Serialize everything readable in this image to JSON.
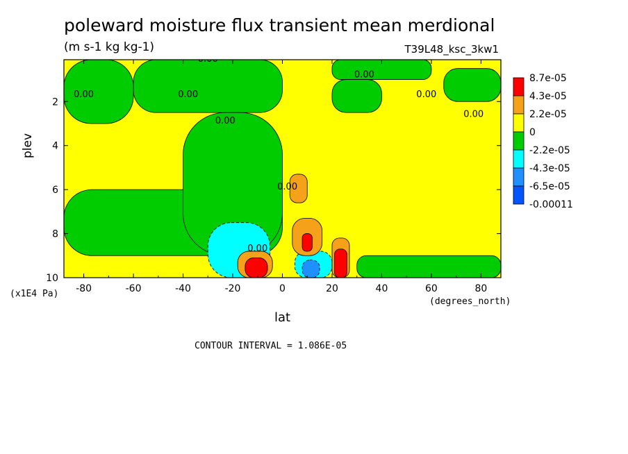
{
  "chart_data": {
    "type": "heatmap",
    "title": "poleward moisture flux transient mean merdional",
    "units": "(m s-1 kg kg-1)",
    "run_label": "T39L48_ksc_3kw1",
    "xlabel": "lat",
    "x_units": "(degrees_north)",
    "ylabel": "plev",
    "y_scale_label": "(x1E4 Pa)",
    "contour_interval": "CONTOUR INTERVAL = 1.086E-05",
    "xlim": [
      -88,
      88
    ],
    "ylim": [
      10,
      0.1
    ],
    "x_ticks": [
      -80,
      -60,
      -40,
      -20,
      0,
      20,
      40,
      60,
      80
    ],
    "x_tick_labels": [
      "-80",
      "-60",
      "-40",
      "-20",
      "0",
      "20",
      "40",
      "60",
      "80"
    ],
    "y_ticks": [
      2,
      4,
      6,
      8,
      10
    ],
    "y_tick_labels": [
      "2",
      "4",
      "6",
      "8",
      "10"
    ],
    "contour_labels": [
      "0.00",
      "0.00",
      "0.00",
      "0.00",
      "0.00",
      "0.00",
      "0.00",
      "0.00",
      "0.00",
      "0.00"
    ],
    "legend": {
      "labels": [
        "8.7e-05",
        "4.3e-05",
        "2.2e-05",
        "0",
        "-2.2e-05",
        "-4.3e-05",
        "-6.5e-05",
        "-0.00011"
      ],
      "colors": [
        "#ff0000",
        "#f5a21a",
        "#ffff00",
        "#00cc00",
        "#00ffff",
        "#1e90ff",
        "#0055ff"
      ]
    },
    "regions": [
      {
        "band": "0 to 2.2e-05",
        "color": "#ffff00",
        "lat": [
          -88,
          88
        ],
        "plev": [
          0.1,
          10
        ]
      },
      {
        "band": "-2.2e-05 to 0",
        "color": "#00cc00",
        "lat": [
          -88,
          -60
        ],
        "plev": [
          0.1,
          3
        ]
      },
      {
        "band": "-2.2e-05 to 0",
        "color": "#00cc00",
        "lat": [
          -60,
          0
        ],
        "plev": [
          0.1,
          2.5
        ]
      },
      {
        "band": "-2.2e-05 to 0",
        "color": "#00cc00",
        "lat": [
          -88,
          0
        ],
        "plev": [
          6,
          9
        ]
      },
      {
        "band": "-2.2e-05 to 0",
        "color": "#00cc00",
        "lat": [
          -40,
          0
        ],
        "plev": [
          2.5,
          9
        ]
      },
      {
        "band": "-2.2e-05 to 0",
        "color": "#00cc00",
        "lat": [
          20,
          60
        ],
        "plev": [
          0.1,
          1
        ]
      },
      {
        "band": "-2.2e-05 to 0",
        "color": "#00cc00",
        "lat": [
          20,
          40
        ],
        "plev": [
          1,
          2.5
        ]
      },
      {
        "band": "-2.2e-05 to 0",
        "color": "#00cc00",
        "lat": [
          65,
          88
        ],
        "plev": [
          0.5,
          2
        ]
      },
      {
        "band": "-2.2e-05 to 0",
        "color": "#00cc00",
        "lat": [
          30,
          88
        ],
        "plev": [
          9,
          10
        ]
      },
      {
        "band": "-4.3e-05 to -2.2e-05",
        "color": "#00ffff",
        "lat": [
          -30,
          -5
        ],
        "plev": [
          7.5,
          10
        ]
      },
      {
        "band": "-4.3e-05 to -2.2e-05",
        "color": "#00ffff",
        "lat": [
          5,
          20
        ],
        "plev": [
          8.8,
          10
        ]
      },
      {
        "band": "2.2e-05 to 4.3e-05",
        "color": "#f5a21a",
        "lat": [
          3,
          10
        ],
        "plev": [
          5.3,
          6.6
        ]
      },
      {
        "band": "2.2e-05 to 4.3e-05",
        "color": "#f5a21a",
        "lat": [
          4,
          16
        ],
        "plev": [
          7.3,
          9
        ]
      },
      {
        "band": "2.2e-05 to 4.3e-05",
        "color": "#f5a21a",
        "lat": [
          -18,
          -4
        ],
        "plev": [
          8.8,
          10
        ]
      },
      {
        "band": "2.2e-05 to 4.3e-05",
        "color": "#f5a21a",
        "lat": [
          20,
          27
        ],
        "plev": [
          8.2,
          10
        ]
      },
      {
        "band": "4.3e-05 to 8.7e-05",
        "color": "#ff0000",
        "lat": [
          -15,
          -6
        ],
        "plev": [
          9.1,
          10
        ]
      },
      {
        "band": "4.3e-05 to 8.7e-05",
        "color": "#ff0000",
        "lat": [
          8,
          12
        ],
        "plev": [
          8,
          8.8
        ]
      },
      {
        "band": "4.3e-05 to 8.7e-05",
        "color": "#ff0000",
        "lat": [
          21,
          26
        ],
        "plev": [
          8.7,
          10
        ]
      },
      {
        "band": "-6.5e-05 to -4.3e-05",
        "color": "#1e90ff",
        "lat": [
          8,
          15
        ],
        "plev": [
          9.2,
          10
        ]
      }
    ]
  }
}
